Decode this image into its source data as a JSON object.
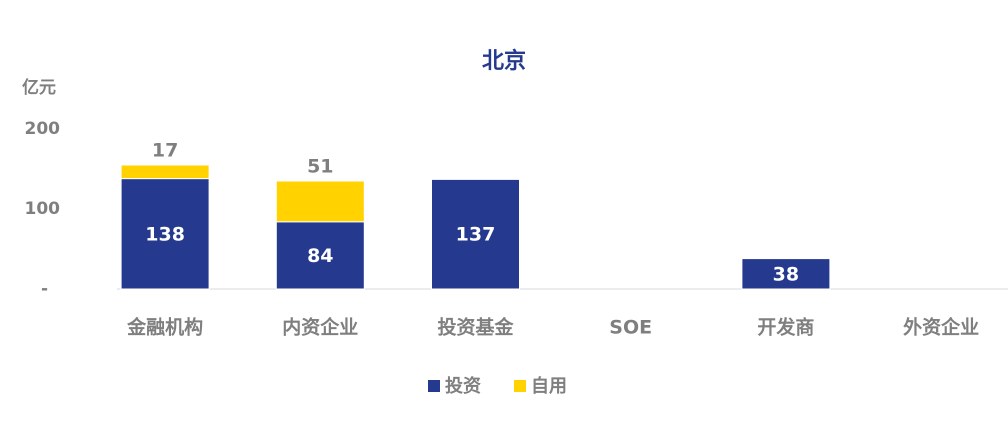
{
  "chart_data": {
    "type": "stacked-bar",
    "title": "北京",
    "ylabel": "亿元",
    "categories": [
      "金融机构",
      "内资企业",
      "投资基金",
      "SOE",
      "开发商",
      "外资企业"
    ],
    "series": [
      {
        "name": "投资",
        "color": "#253a8e",
        "values": [
          138,
          84,
          137,
          null,
          38,
          null
        ]
      },
      {
        "name": "自用",
        "color": "#ffd200",
        "values": [
          17,
          51,
          null,
          null,
          null,
          null
        ]
      }
    ],
    "ylim": [
      0,
      200
    ],
    "yticks": [
      {
        "value": 0,
        "label": "-"
      },
      100,
      200
    ]
  }
}
